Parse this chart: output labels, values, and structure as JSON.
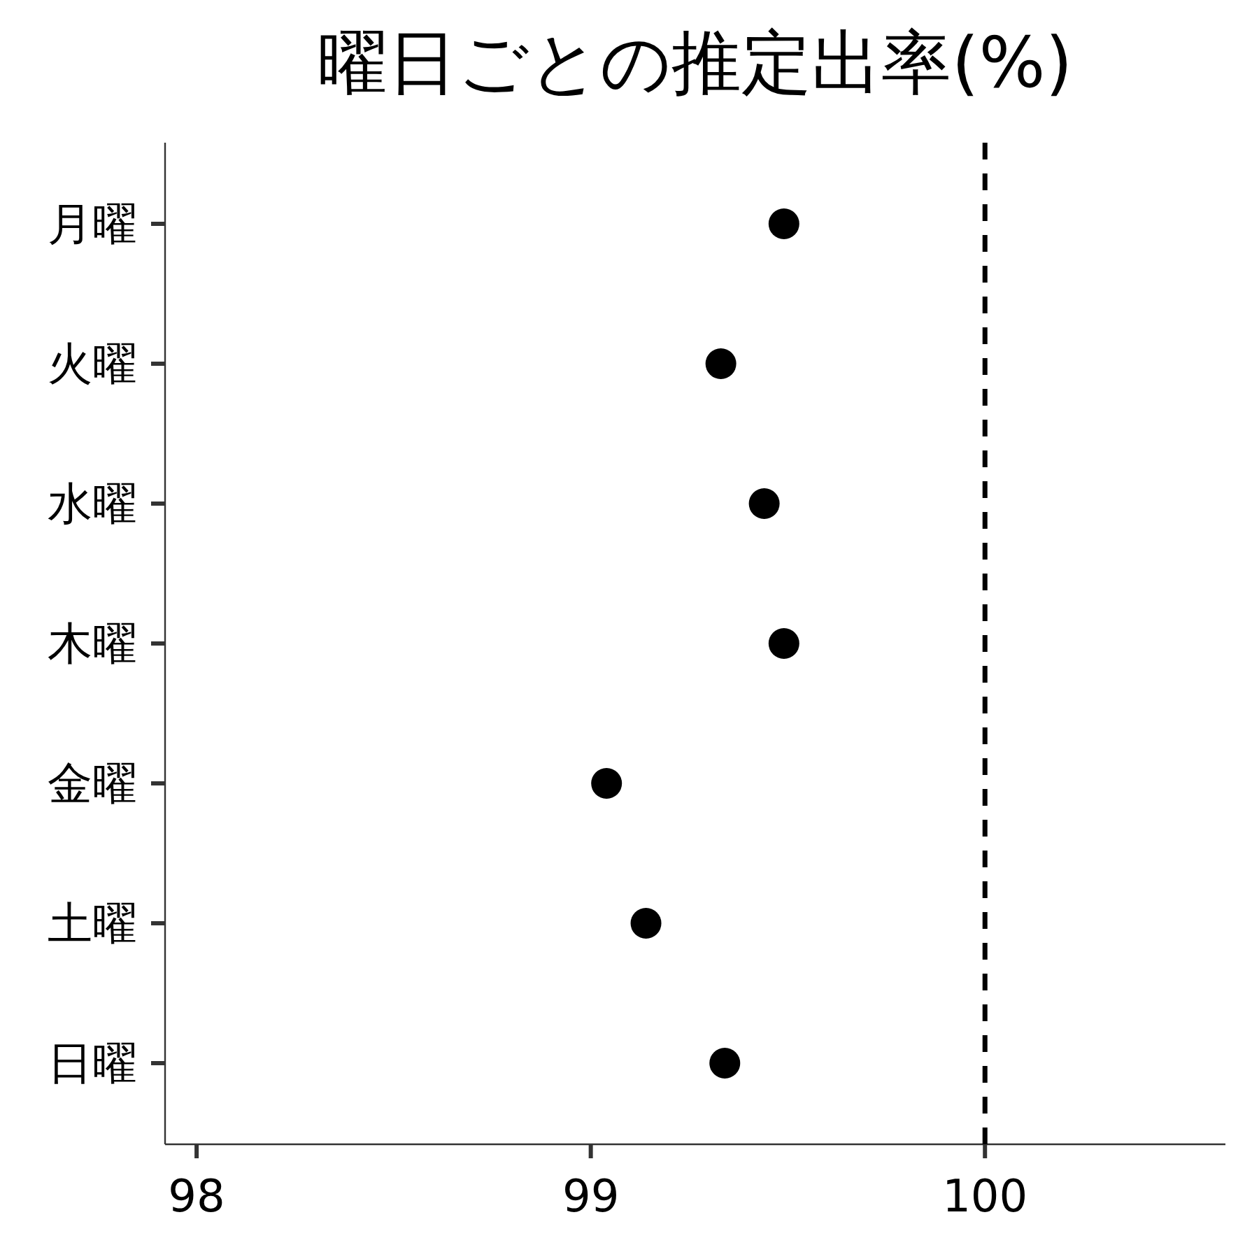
{
  "chart_data": {
    "type": "scatter",
    "orientation": "horizontal",
    "title": "曜日ごとの推定出率(%)",
    "categories": [
      "月曜",
      "火曜",
      "水曜",
      "木曜",
      "金曜",
      "土曜",
      "日曜"
    ],
    "values": [
      99.49,
      99.33,
      99.44,
      99.49,
      99.04,
      99.14,
      99.34
    ],
    "color": "#000000",
    "marker": "circle",
    "xlim": [
      97.92,
      100.61
    ],
    "xticks": [
      98,
      99,
      100
    ],
    "grid": false,
    "ref_lines": [
      {
        "axis": "x",
        "value": 100,
        "line_style": "dashed",
        "color": "#000000"
      }
    ]
  }
}
